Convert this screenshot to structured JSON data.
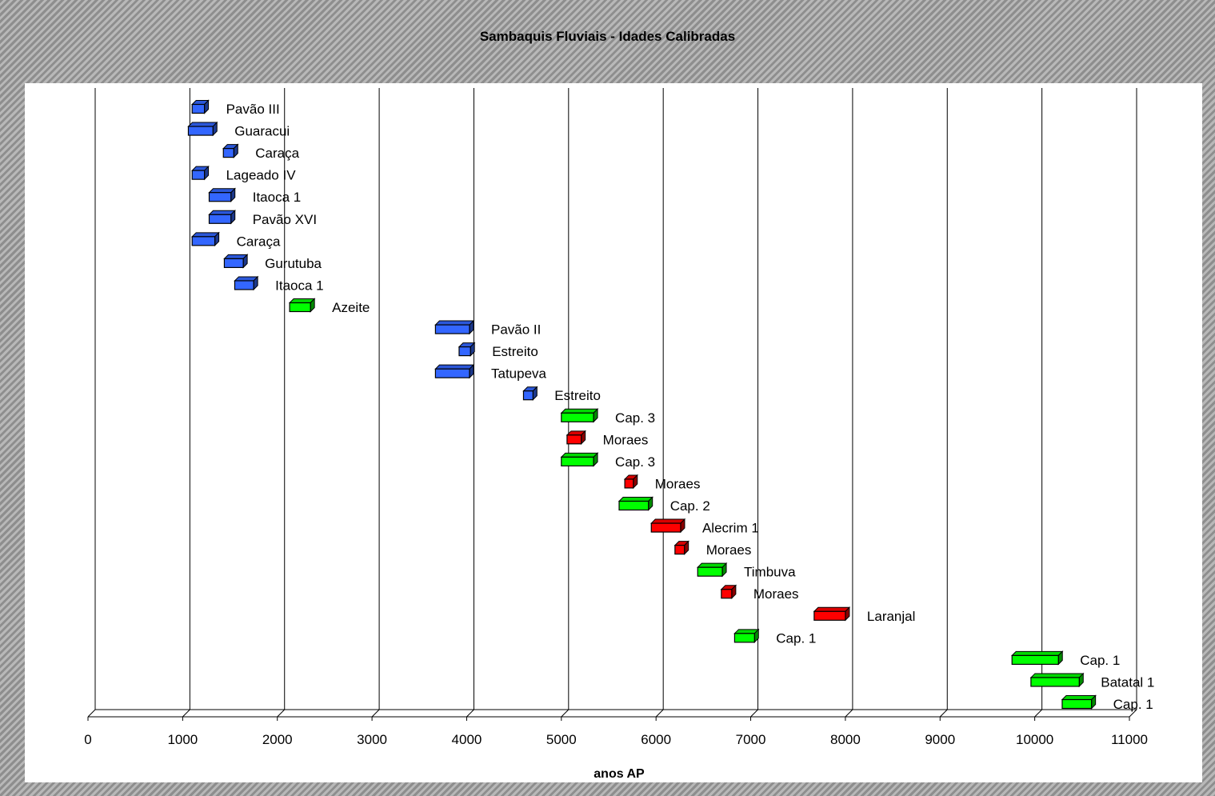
{
  "chart_data": {
    "type": "bar",
    "title": "Sambaquis Fluviais - Idades Calibradas",
    "xlabel": "anos AP",
    "ylabel": "",
    "xlim": [
      0,
      11000
    ],
    "xticks": [
      0,
      1000,
      2000,
      3000,
      4000,
      5000,
      6000,
      7000,
      8000,
      9000,
      10000,
      11000
    ],
    "grid": true,
    "legend": "none",
    "colors": {
      "blue": "#3366ff",
      "green": "#00ff00",
      "red": "#ff0000"
    },
    "bars": [
      {
        "label": "Pavão III",
        "start": 1100,
        "end": 1230,
        "color": "blue"
      },
      {
        "label": "Guaracui",
        "start": 1060,
        "end": 1320,
        "color": "blue"
      },
      {
        "label": "Caraça",
        "start": 1430,
        "end": 1540,
        "color": "blue"
      },
      {
        "label": "Lageado IV",
        "start": 1100,
        "end": 1230,
        "color": "blue"
      },
      {
        "label": "Itaoca 1",
        "start": 1280,
        "end": 1510,
        "color": "blue"
      },
      {
        "label": "Pavão XVI",
        "start": 1280,
        "end": 1510,
        "color": "blue"
      },
      {
        "label": "Caraça",
        "start": 1100,
        "end": 1340,
        "color": "blue"
      },
      {
        "label": "Gurutuba",
        "start": 1440,
        "end": 1640,
        "color": "blue"
      },
      {
        "label": "Itaoca 1",
        "start": 1550,
        "end": 1750,
        "color": "blue"
      },
      {
        "label": "Azeite",
        "start": 2130,
        "end": 2350,
        "color": "green"
      },
      {
        "label": "Pavão II",
        "start": 3670,
        "end": 4030,
        "color": "blue"
      },
      {
        "label": "Estreito",
        "start": 3920,
        "end": 4040,
        "color": "blue"
      },
      {
        "label": "Tatupeva",
        "start": 3670,
        "end": 4030,
        "color": "blue"
      },
      {
        "label": "Estreito",
        "start": 4600,
        "end": 4700,
        "color": "blue"
      },
      {
        "label": "Cap. 3",
        "start": 5000,
        "end": 5340,
        "color": "green"
      },
      {
        "label": "Moraes",
        "start": 5060,
        "end": 5210,
        "color": "red"
      },
      {
        "label": "Cap. 3",
        "start": 5000,
        "end": 5340,
        "color": "green"
      },
      {
        "label": "Moraes",
        "start": 5670,
        "end": 5760,
        "color": "red"
      },
      {
        "label": "Cap. 2",
        "start": 5610,
        "end": 5920,
        "color": "green"
      },
      {
        "label": "Alecrim 1",
        "start": 5950,
        "end": 6260,
        "color": "red"
      },
      {
        "label": "Moraes",
        "start": 6200,
        "end": 6300,
        "color": "red"
      },
      {
        "label": "Timbuva",
        "start": 6440,
        "end": 6700,
        "color": "green"
      },
      {
        "label": "Moraes",
        "start": 6690,
        "end": 6800,
        "color": "red"
      },
      {
        "label": "Laranjal",
        "start": 7670,
        "end": 8000,
        "color": "red"
      },
      {
        "label": "Cap. 1",
        "start": 6830,
        "end": 7040,
        "color": "green"
      },
      {
        "label": "Cap. 1",
        "start": 9760,
        "end": 10250,
        "color": "green"
      },
      {
        "label": "Batatal 1",
        "start": 9960,
        "end": 10470,
        "color": "green"
      },
      {
        "label": "Cap. 1",
        "start": 10290,
        "end": 10600,
        "color": "green"
      }
    ]
  }
}
